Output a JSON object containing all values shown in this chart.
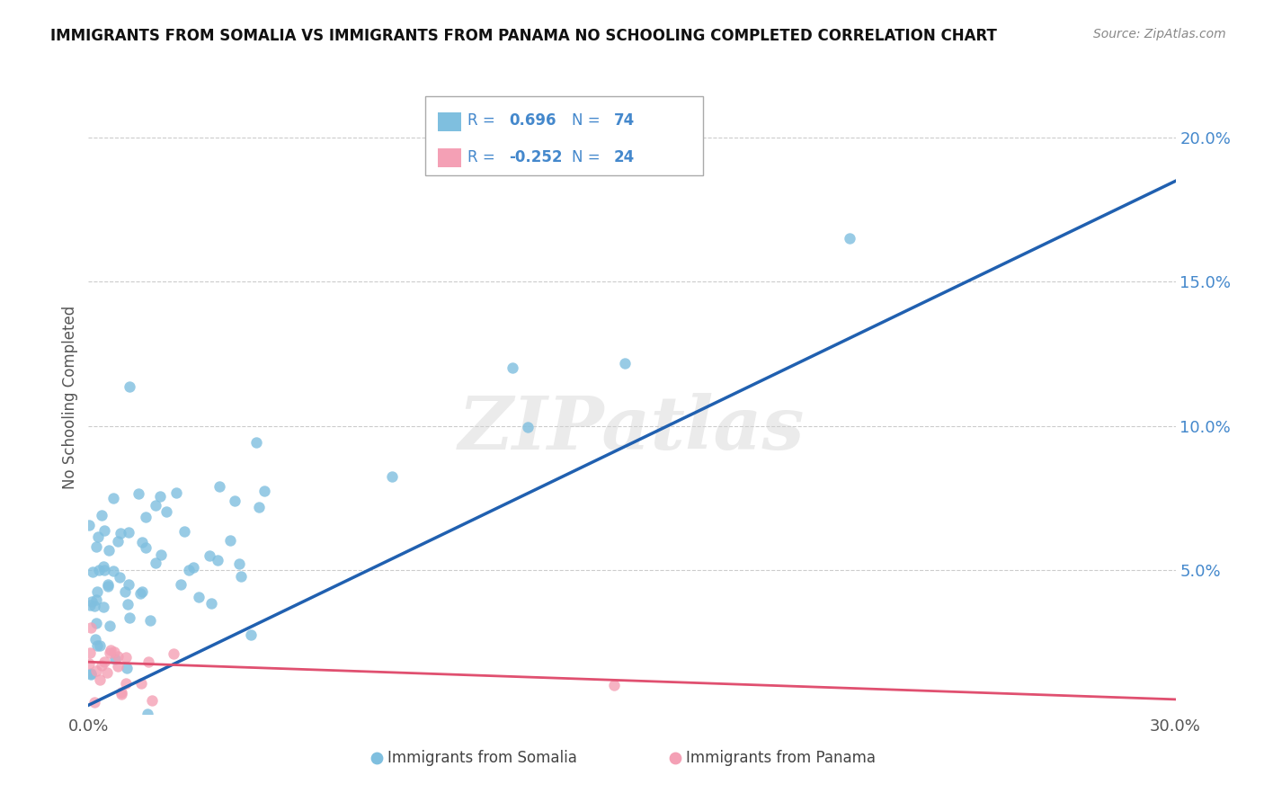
{
  "title": "IMMIGRANTS FROM SOMALIA VS IMMIGRANTS FROM PANAMA NO SCHOOLING COMPLETED CORRELATION CHART",
  "source": "Source: ZipAtlas.com",
  "ylabel": "No Schooling Completed",
  "xlim": [
    0.0,
    0.3
  ],
  "ylim": [
    0.0,
    0.22
  ],
  "somalia_color": "#7fbfdf",
  "panama_color": "#f4a0b5",
  "somalia_line_color": "#2060b0",
  "panama_line_color": "#e05070",
  "legend_text_color": "#4488cc",
  "somalia_R": 0.696,
  "somalia_N": 74,
  "panama_R": -0.252,
  "panama_N": 24,
  "watermark": "ZIPatlas",
  "right_ytick_color": "#4488cc",
  "grid_color": "#cccccc"
}
